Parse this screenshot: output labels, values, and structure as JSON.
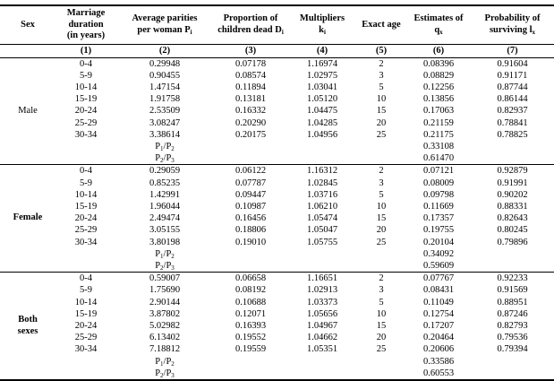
{
  "table": {
    "headers": [
      {
        "lines": [
          "Sex"
        ],
        "sub": "",
        "num": ""
      },
      {
        "lines": [
          "Marriage",
          "duration",
          "(in years)"
        ],
        "sub": "",
        "num": "(1)"
      },
      {
        "lines": [
          "Average parities",
          "per woman P"
        ],
        "sub": "i",
        "num": "(2)"
      },
      {
        "lines": [
          "Proportion of",
          "children dead D"
        ],
        "sub": "i",
        "num": "(3)"
      },
      {
        "lines": [
          "Multipliers",
          "k"
        ],
        "sub": "i",
        "num": "(4)"
      },
      {
        "lines": [
          "Exact age"
        ],
        "sub": "",
        "num": "(5)"
      },
      {
        "lines": [
          "Estimates of",
          "q"
        ],
        "sub": "x",
        "num": "(6)"
      },
      {
        "lines": [
          "Probability of",
          "surviving l"
        ],
        "sub": "x",
        "num": "(7)"
      }
    ],
    "ratio_parts": {
      "base": "P",
      "slash": "/P"
    },
    "sections": [
      {
        "id": "male",
        "sex": "Male",
        "bold": false,
        "rows": [
          [
            "0-4",
            "0.29948",
            "0.07178",
            "1.16974",
            "2",
            "0.08396",
            "0.91604"
          ],
          [
            "5-9",
            "0.90455",
            "0.08574",
            "1.02975",
            "3",
            "0.08829",
            "0.91171"
          ],
          [
            "10-14",
            "1.47154",
            "0.11894",
            "1.03041",
            "5",
            "0.12256",
            "0.87744"
          ],
          [
            "15-19",
            "1.91758",
            "0.13181",
            "1.05120",
            "10",
            "0.13856",
            "0.86144"
          ],
          [
            "20-24",
            "2.53509",
            "0.16332",
            "1.04475",
            "15",
            "0.17063",
            "0.82937"
          ],
          [
            "25-29",
            "3.08247",
            "0.20290",
            "1.04285",
            "20",
            "0.21159",
            "0.78841"
          ],
          [
            "30-34",
            "3.38614",
            "0.20175",
            "1.04956",
            "25",
            "0.21175",
            "0.78825"
          ]
        ],
        "ratios": [
          {
            "sub1": "1",
            "sub2": "2",
            "value": "0.33108"
          },
          {
            "sub1": "2",
            "sub2": "3",
            "value": "0.61470"
          }
        ]
      },
      {
        "id": "female",
        "sex": "Female",
        "bold": true,
        "rows": [
          [
            "0-4",
            "0.29059",
            "0.06122",
            "1.16312",
            "2",
            "0.07121",
            "0.92879"
          ],
          [
            "5-9",
            "0.85235",
            "0.07787",
            "1.02845",
            "3",
            "0.08009",
            "0.91991"
          ],
          [
            "10-14",
            "1.42991",
            "0.09447",
            "1.03716",
            "5",
            "0.09798",
            "0.90202"
          ],
          [
            "15-19",
            "1.96044",
            "0.10987",
            "1.06210",
            "10",
            "0.11669",
            "0.88331"
          ],
          [
            "20-24",
            "2.49474",
            "0.16456",
            "1.05474",
            "15",
            "0.17357",
            "0.82643"
          ],
          [
            "25-29",
            "3.05155",
            "0.18806",
            "1.05047",
            "20",
            "0.19755",
            "0.80245"
          ],
          [
            "30-34",
            "3.80198",
            "0.19010",
            "1.05755",
            "25",
            "0.20104",
            "0.79896"
          ]
        ],
        "ratios": [
          {
            "sub1": "1",
            "sub2": "2",
            "value": "0.34092"
          },
          {
            "sub1": "2",
            "sub2": "3",
            "value": "0.59609"
          }
        ]
      },
      {
        "id": "both-sexes",
        "sex": "Both sexes",
        "bold": true,
        "rows": [
          [
            "0-4",
            "0.59007",
            "0.06658",
            "1.16651",
            "2",
            "0.07767",
            "0.92233"
          ],
          [
            "5-9",
            "1.75690",
            "0.08192",
            "1.02913",
            "3",
            "0.08431",
            "0.91569"
          ],
          [
            "10-14",
            "2.90144",
            "0.10688",
            "1.03373",
            "5",
            "0.11049",
            "0.88951"
          ],
          [
            "15-19",
            "3.87802",
            "0.12071",
            "1.05656",
            "10",
            "0.12754",
            "0.87246"
          ],
          [
            "20-24",
            "5.02982",
            "0.16393",
            "1.04967",
            "15",
            "0.17207",
            "0.82793"
          ],
          [
            "25-29",
            "6.13402",
            "0.19552",
            "1.04662",
            "20",
            "0.20464",
            "0.79536"
          ],
          [
            "30-34",
            "7.18812",
            "0.19559",
            "1.05351",
            "25",
            "0.20606",
            "0.79394"
          ]
        ],
        "ratios": [
          {
            "sub1": "1",
            "sub2": "2",
            "value": "0.33586"
          },
          {
            "sub1": "2",
            "sub2": "3",
            "value": "0.60553"
          }
        ]
      }
    ]
  }
}
